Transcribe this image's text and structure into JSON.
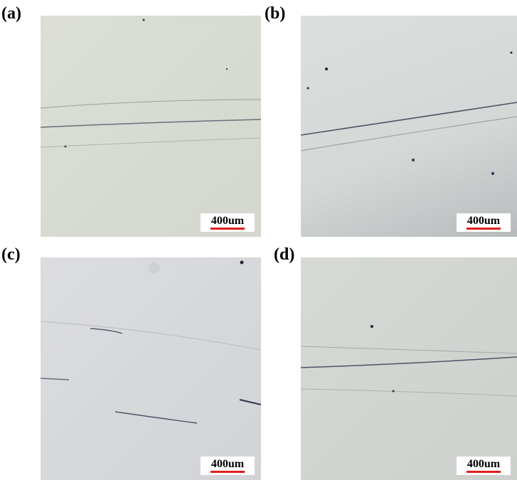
{
  "panels": [
    {
      "label": "(a)",
      "scale_bar": "400um"
    },
    {
      "label": "(b)",
      "scale_bar": "400um"
    },
    {
      "label": "(c)",
      "scale_bar": "400um"
    },
    {
      "label": "(d)",
      "scale_bar": "400um"
    }
  ]
}
